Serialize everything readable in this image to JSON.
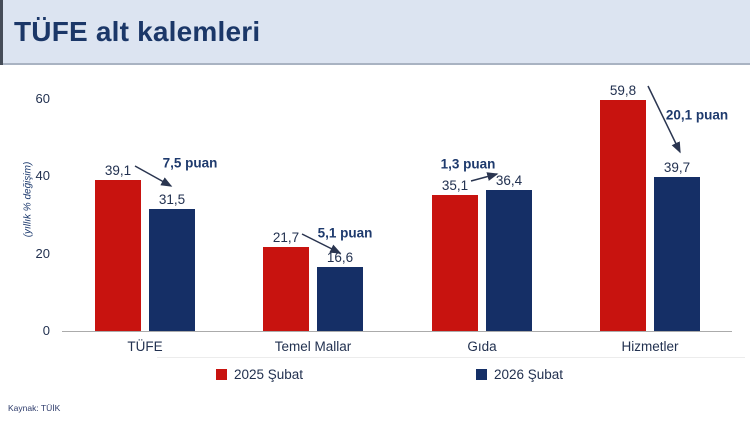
{
  "header": {
    "title": "TÜFE alt kalemleri"
  },
  "footer": {
    "source": "Kaynak: TÜİK"
  },
  "colors": {
    "header_bg": "#dce4f1",
    "title_text": "#1b3768",
    "bar_2025": "#c8130f",
    "bar_2026": "#152f66",
    "annotation_text": "#1e3a6d"
  },
  "chart_data": {
    "type": "bar",
    "title": "TÜFE alt kalemleri",
    "xlabel": "",
    "ylabel": "(yıllık % değişim)",
    "categories": [
      "TÜFE",
      "Temel Mallar",
      "Gıda",
      "Hizmetler"
    ],
    "series": [
      {
        "name": "2025 Şubat",
        "color": "#c8130f",
        "values": [
          39.1,
          21.7,
          35.1,
          59.8
        ]
      },
      {
        "name": "2026 Şubat",
        "color": "#152f66",
        "values": [
          31.5,
          16.6,
          36.4,
          39.7
        ]
      }
    ],
    "annotations": [
      {
        "category": "TÜFE",
        "text": "7,5 puan"
      },
      {
        "category": "Temel Mallar",
        "text": "5,1 puan"
      },
      {
        "category": "Gıda",
        "text": "1,3 puan"
      },
      {
        "category": "Hizmetler",
        "text": "20,1 puan"
      }
    ],
    "yticks": [
      0,
      20,
      40,
      60
    ],
    "ylim": [
      0,
      64
    ],
    "grid": false,
    "legend_position": "bottom",
    "value_label_format": "comma-decimal"
  }
}
